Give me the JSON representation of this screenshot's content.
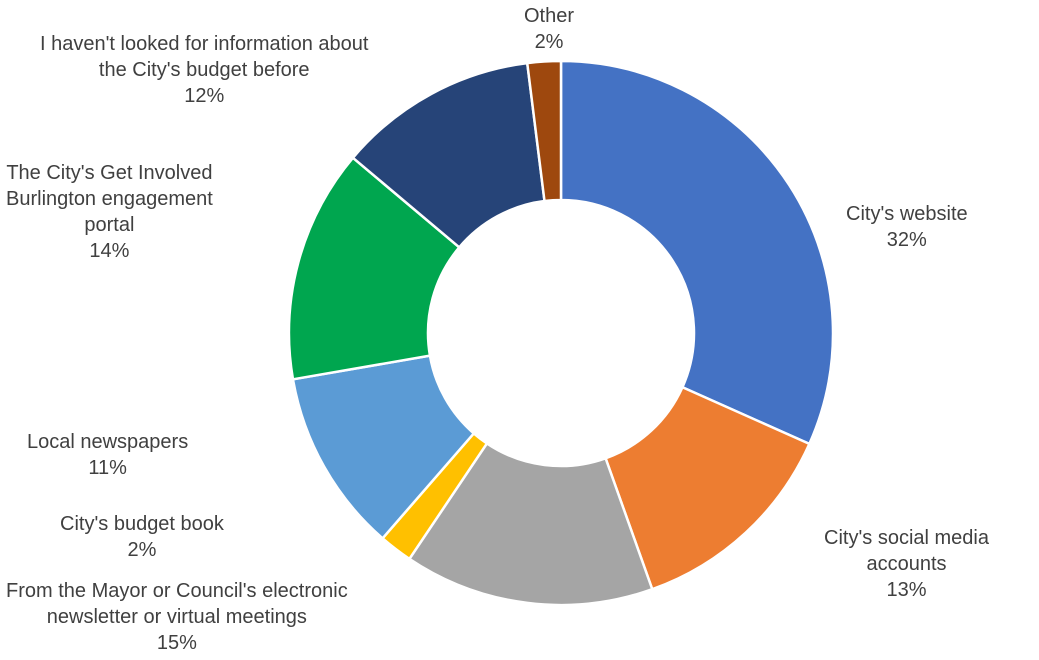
{
  "chart_data": {
    "type": "pie",
    "title": "",
    "slices": [
      {
        "label": "City's website",
        "value": 32,
        "value_label": "32%",
        "color": "#4472C4",
        "label_lines": [
          "City's website",
          "32%"
        ]
      },
      {
        "label": "City's social media accounts",
        "value": 13,
        "value_label": "13%",
        "color": "#ED7D31",
        "label_lines": [
          "City's social media",
          "accounts",
          "13%"
        ]
      },
      {
        "label": "From the Mayor or Council's electronic newsletter or virtual meetings",
        "value": 15,
        "value_label": "15%",
        "color": "#A5A5A5",
        "label_lines": [
          "From the Mayor or Council's electronic",
          "newsletter or virtual meetings",
          "15%"
        ]
      },
      {
        "label": "City's budget book",
        "value": 2,
        "value_label": "2%",
        "color": "#FFC000",
        "label_lines": [
          "City's budget book",
          "2%"
        ]
      },
      {
        "label": "Local newspapers",
        "value": 11,
        "value_label": "11%",
        "color": "#5B9BD5",
        "label_lines": [
          "Local newspapers",
          "11%"
        ]
      },
      {
        "label": "The City's Get Involved Burlington engagement portal",
        "value": 14,
        "value_label": "14%",
        "color": "#00A64F",
        "label_lines": [
          "The City's Get Involved",
          "Burlington engagement",
          "portal",
          "14%"
        ]
      },
      {
        "label": "I haven't looked for information about the City's budget before",
        "value": 12,
        "value_label": "12%",
        "color": "#264478",
        "label_lines": [
          "I haven't looked for information about",
          "the City's budget before",
          "12%"
        ]
      },
      {
        "label": "Other",
        "value": 2,
        "value_label": "2%",
        "color": "#9E480E",
        "label_lines": [
          "Other",
          "2%"
        ]
      }
    ],
    "donut": true,
    "start_angle": "12 o'clock",
    "direction": "clockwise",
    "legend": "none"
  }
}
